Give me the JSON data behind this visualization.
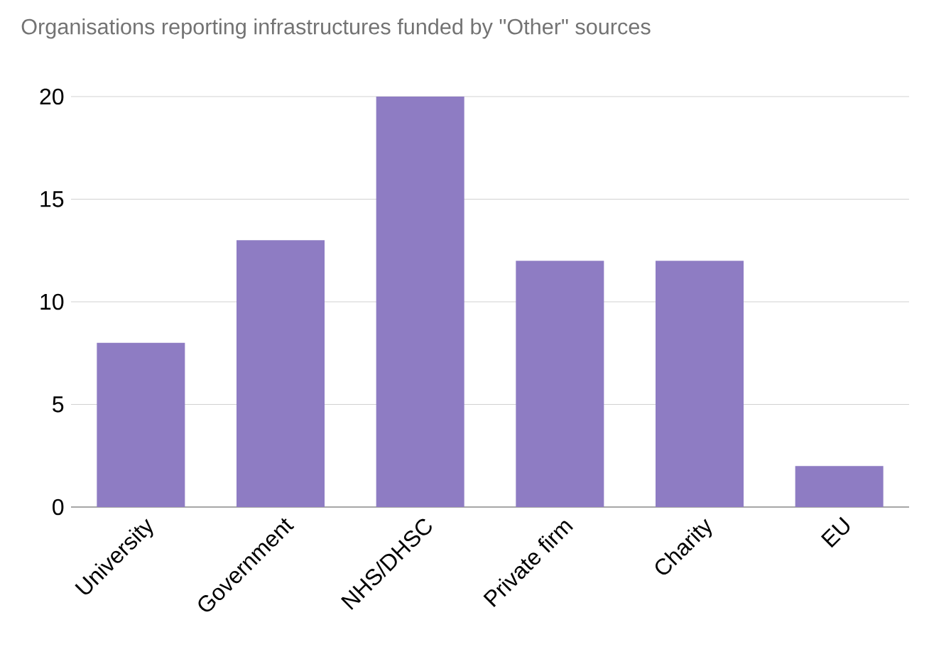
{
  "chart_data": {
    "type": "bar",
    "title": "Organisations reporting infrastructures funded by \"Other\" sources",
    "categories": [
      "University",
      "Government",
      "NHS/DHSC",
      "Private firm",
      "Charity",
      "EU"
    ],
    "values": [
      8,
      13,
      20,
      12,
      12,
      2
    ],
    "color": "#8e7cc3",
    "ylim": [
      0,
      20
    ],
    "yticks": [
      0,
      5,
      10,
      15,
      20
    ],
    "grid": "y"
  }
}
